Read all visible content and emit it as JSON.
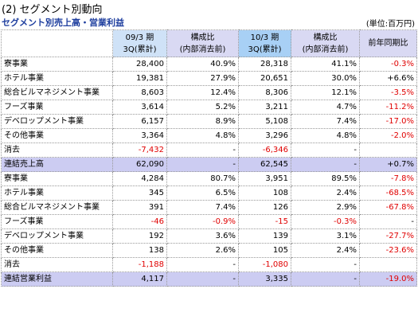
{
  "header": {
    "title": "(2) セグメント別動向",
    "subtitle": "セグメント別売上高・営業利益",
    "unit": "(単位:百万円)"
  },
  "table": {
    "columns": [
      "09/3 期\n3Q(累計)",
      "構成比\n(内部消去前)",
      "10/3 期\n3Q(累計)",
      "構成比\n(内部消去前)",
      "前年同期比"
    ],
    "rows": [
      [
        "寮事業",
        "28,400",
        "40.9%",
        "28,318",
        "41.1%",
        "-0.3%"
      ],
      [
        "ホテル事業",
        "19,381",
        "27.9%",
        "20,651",
        "30.0%",
        "+6.6%"
      ],
      [
        "総合ビルマネジメント事業",
        "8,603",
        "12.4%",
        "8,306",
        "12.1%",
        "-3.5%"
      ],
      [
        "フーズ事業",
        "3,614",
        "5.2%",
        "3,211",
        "4.7%",
        "-11.2%"
      ],
      [
        "デベロップメント事業",
        "6,157",
        "8.9%",
        "5,108",
        "7.4%",
        "-17.0%"
      ],
      [
        "その他事業",
        "3,364",
        "4.8%",
        "3,296",
        "4.8%",
        "-2.0%"
      ],
      [
        "消去",
        "-7,432",
        "-",
        "-6,346",
        "-",
        null
      ],
      [
        "連結売上高",
        "62,090",
        "-",
        "62,545",
        "-",
        "+0.7%"
      ],
      [
        "寮事業",
        "4,284",
        "80.7%",
        "3,951",
        "89.5%",
        "-7.8%"
      ],
      [
        "ホテル事業",
        "345",
        "6.5%",
        "108",
        "2.4%",
        "-68.5%"
      ],
      [
        "総合ビルマネジメント事業",
        "391",
        "7.4%",
        "126",
        "2.9%",
        "-67.8%"
      ],
      [
        "フーズ事業",
        "-46",
        "-0.9%",
        "-15",
        "-0.3%",
        "-"
      ],
      [
        "デベロップメント事業",
        "192",
        "3.6%",
        "139",
        "3.1%",
        "-27.7%"
      ],
      [
        "その他事業",
        "138",
        "2.6%",
        "105",
        "2.4%",
        "-23.6%"
      ],
      [
        "消去",
        "-1,188",
        "-",
        "-1,080",
        "-",
        null
      ],
      [
        "連結営業利益",
        "4,117",
        "-",
        "3,335",
        "-",
        "-19.0%"
      ]
    ]
  }
}
